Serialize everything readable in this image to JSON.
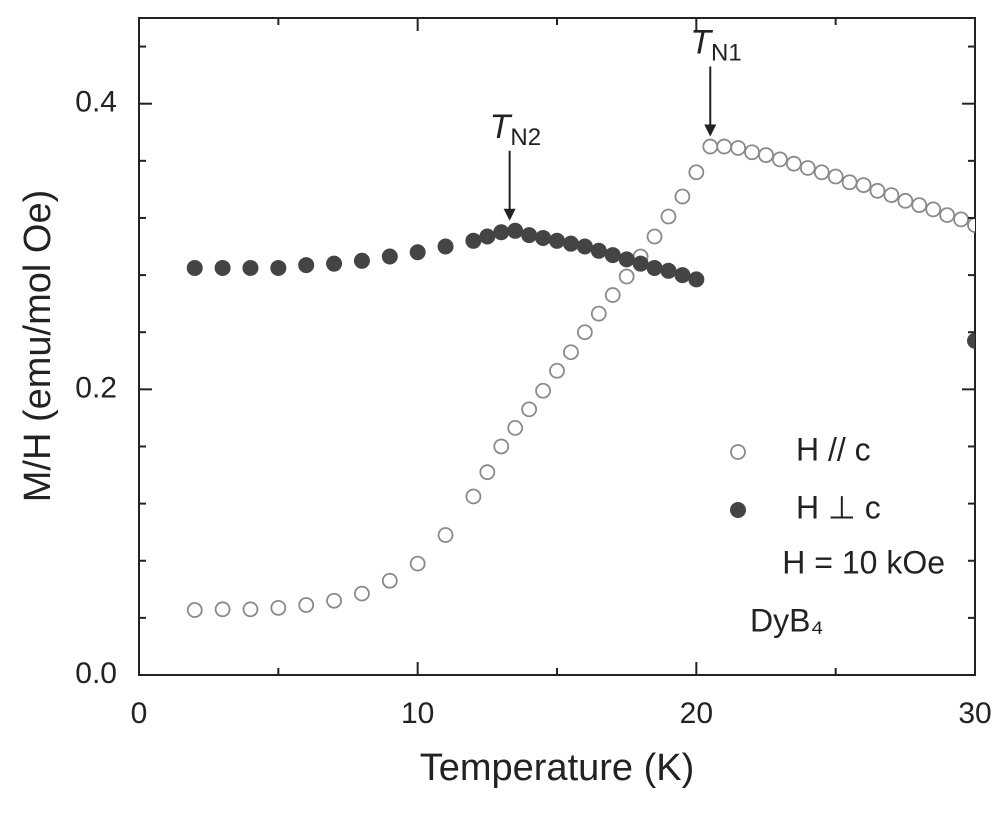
{
  "chart_data": {
    "type": "scatter",
    "xlabel": "Temperature (K)",
    "ylabel": "M/H (emu/mol Oe)",
    "xlim": [
      0,
      30
    ],
    "ylim": [
      0,
      0.46
    ],
    "xticks": [
      0,
      10,
      20,
      30
    ],
    "xminorticks": [
      5,
      15,
      25
    ],
    "yticks": [
      {
        "value": 0,
        "label": "0.0"
      },
      0.2,
      0.4
    ],
    "yminorticks": [
      0.04,
      0.08,
      0.12,
      0.16,
      0.24,
      0.28,
      0.32,
      0.36,
      0.44
    ],
    "legend": "right",
    "series": [
      {
        "name": "H // c",
        "color": "#8a8a8a",
        "marker": "open",
        "x": [
          2,
          3,
          4,
          5,
          6,
          7,
          8,
          9,
          10,
          11,
          12,
          12.5,
          13,
          13.5,
          14,
          14.5,
          15,
          15.5,
          16,
          16.5,
          17,
          17.5,
          18,
          18.5,
          19,
          19.5,
          20,
          20.5,
          21,
          21.5,
          22,
          22.5,
          23,
          23.5,
          24,
          24.5,
          25,
          25.5,
          26,
          26.5,
          27,
          27.5,
          28,
          28.5,
          29,
          29.5,
          30
        ],
        "values": [
          0.0455,
          0.046,
          0.046,
          0.047,
          0.049,
          0.052,
          0.057,
          0.066,
          0.078,
          0.098,
          0.125,
          0.142,
          0.16,
          0.173,
          0.186,
          0.199,
          0.213,
          0.226,
          0.24,
          0.253,
          0.266,
          0.279,
          0.293,
          0.307,
          0.321,
          0.335,
          0.352,
          0.37,
          0.37,
          0.369,
          0.366,
          0.364,
          0.361,
          0.358,
          0.355,
          0.352,
          0.349,
          0.345,
          0.343,
          0.339,
          0.336,
          0.332,
          0.329,
          0.326,
          0.322,
          0.319,
          0.315
        ]
      },
      {
        "name": "H ⊥ c",
        "color": "#444444",
        "marker": "filled",
        "x": [
          2,
          3,
          4,
          5,
          6,
          7,
          8,
          9,
          10,
          11,
          12,
          12.5,
          13,
          13.5,
          14,
          14.5,
          15,
          15.5,
          16,
          16.5,
          17,
          17.5,
          18,
          18.5,
          19,
          19.5,
          20,
          30
        ],
        "values": [
          0.285,
          0.285,
          0.285,
          0.285,
          0.287,
          0.288,
          0.29,
          0.293,
          0.296,
          0.3,
          0.304,
          0.307,
          0.31,
          0.311,
          0.308,
          0.306,
          0.304,
          0.302,
          0.3,
          0.297,
          0.294,
          0.291,
          0.288,
          0.285,
          0.283,
          0.28,
          0.277,
          0.234
        ]
      }
    ],
    "notes": [
      "H = 10 kOe",
      "DyB₄"
    ],
    "annotations": [
      {
        "text": "T",
        "sub": "N1",
        "x": 20.5,
        "y": 0.37
      },
      {
        "text": "T",
        "sub": "N2",
        "x": 13.3,
        "y": 0.311
      }
    ]
  }
}
